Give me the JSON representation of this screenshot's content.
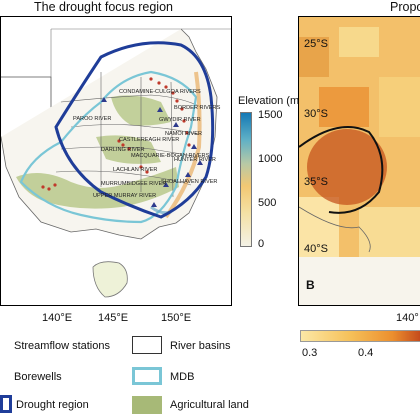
{
  "panel_a": {
    "title": "The drought focus region",
    "rivers": [
      "CONDAMINE-CULGOA RIVERS",
      "BORDER RIVERS",
      "PAROO RIVER",
      "GWYDIR RIVER",
      "NAMOI RIVER",
      "CASTLEREAGH RIVER",
      "DARLING RIVER",
      "MACQUARIE-BOGAN RIVERS",
      "LACHLAN RIVER",
      "HUNTER RIVER",
      "MURRUMBIDGEE RIVER",
      "UPPER MURRAY RIVER",
      "SHOALHAVEN RIVER"
    ],
    "x_ticks": [
      "140°E",
      "145°E",
      "150°E"
    ],
    "colorbar": {
      "title": "Elevation (m)",
      "ticks": [
        "1500",
        "1000",
        "500",
        "0"
      ]
    },
    "colors": {
      "drought_region": "#1f3d99",
      "mdb": "#7ac6d6",
      "agricultural_land": "#a7b977",
      "borewells": "#c0392b",
      "streamflow_stations": "#2e3a8c"
    }
  },
  "panel_b": {
    "title_partial": "Propo",
    "panel_label": "B",
    "y_ticks": [
      "25°S",
      "30°S",
      "35°S",
      "40°S"
    ],
    "x_tick_partial": "140°",
    "colorbar_ticks": [
      "0.3",
      "0.4"
    ]
  },
  "legend": {
    "streamflow_stations": "Streamflow stations",
    "river_basins": "River basins",
    "borewells": "Borewells",
    "mdb": "MDB",
    "drought_region": "Drought region",
    "agricultural_land": "Agricultural land"
  }
}
